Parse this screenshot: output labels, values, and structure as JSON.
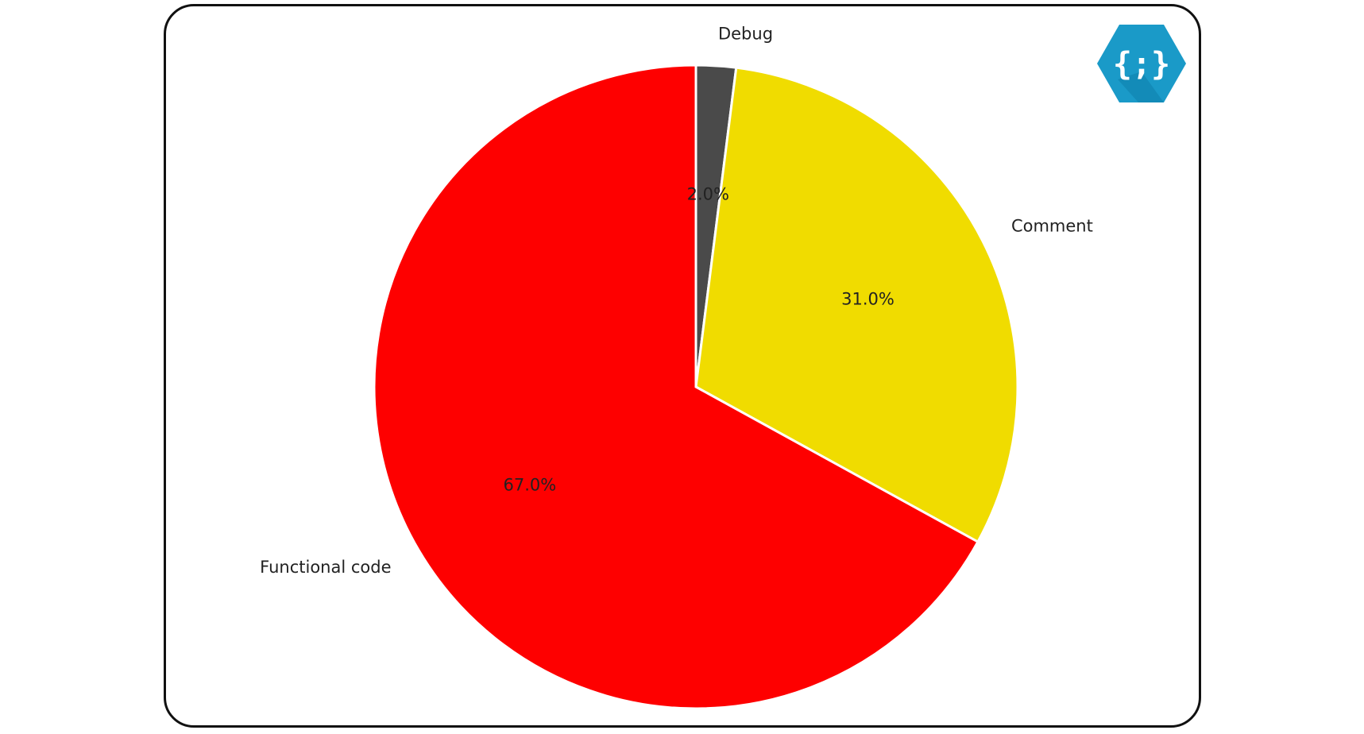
{
  "chart_data": {
    "type": "pie",
    "slices": [
      {
        "label": "Debug",
        "value": 2.0,
        "pct_label": "2.0%",
        "color": "#4a4a4a"
      },
      {
        "label": "Comment",
        "value": 31.0,
        "pct_label": "31.0%",
        "color": "#f0dc00"
      },
      {
        "label": "Functional code",
        "value": 67.0,
        "pct_label": "67.0%",
        "color": "#fe0000"
      }
    ],
    "start_angle": "top",
    "direction": "clockwise",
    "edge_color": "#ffffff"
  },
  "logo": {
    "icon": "curly-braces-semicolon-icon",
    "glyph": "{;}",
    "color": "#1a9ac8"
  }
}
